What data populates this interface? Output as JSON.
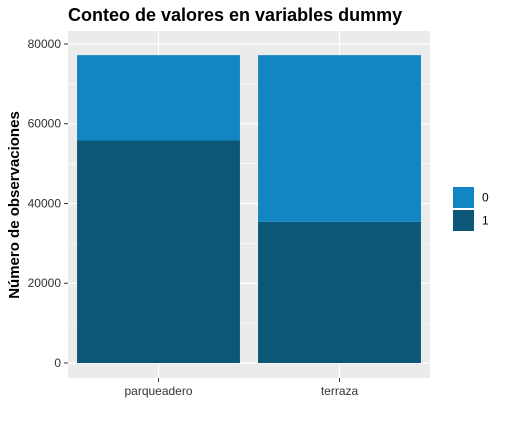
{
  "chart_data": {
    "type": "bar",
    "stacked": true,
    "title": "Conteo de valores en variables dummy",
    "xlabel": "",
    "ylabel": "Número de observaciones",
    "categories": [
      "parqueadero",
      "terraza"
    ],
    "series": [
      {
        "name": "0",
        "values": [
          21400,
          41800
        ],
        "color": "#1186C2"
      },
      {
        "name": "1",
        "values": [
          55800,
          35400
        ],
        "color": "#0C5678"
      }
    ],
    "ylim": [
      0,
      82000
    ],
    "yticks": [
      0,
      20000,
      40000,
      60000,
      80000
    ],
    "grid": true,
    "panel_background": "#EBEBEB",
    "legend": {
      "position": "right",
      "entries": [
        "0",
        "1"
      ]
    }
  }
}
